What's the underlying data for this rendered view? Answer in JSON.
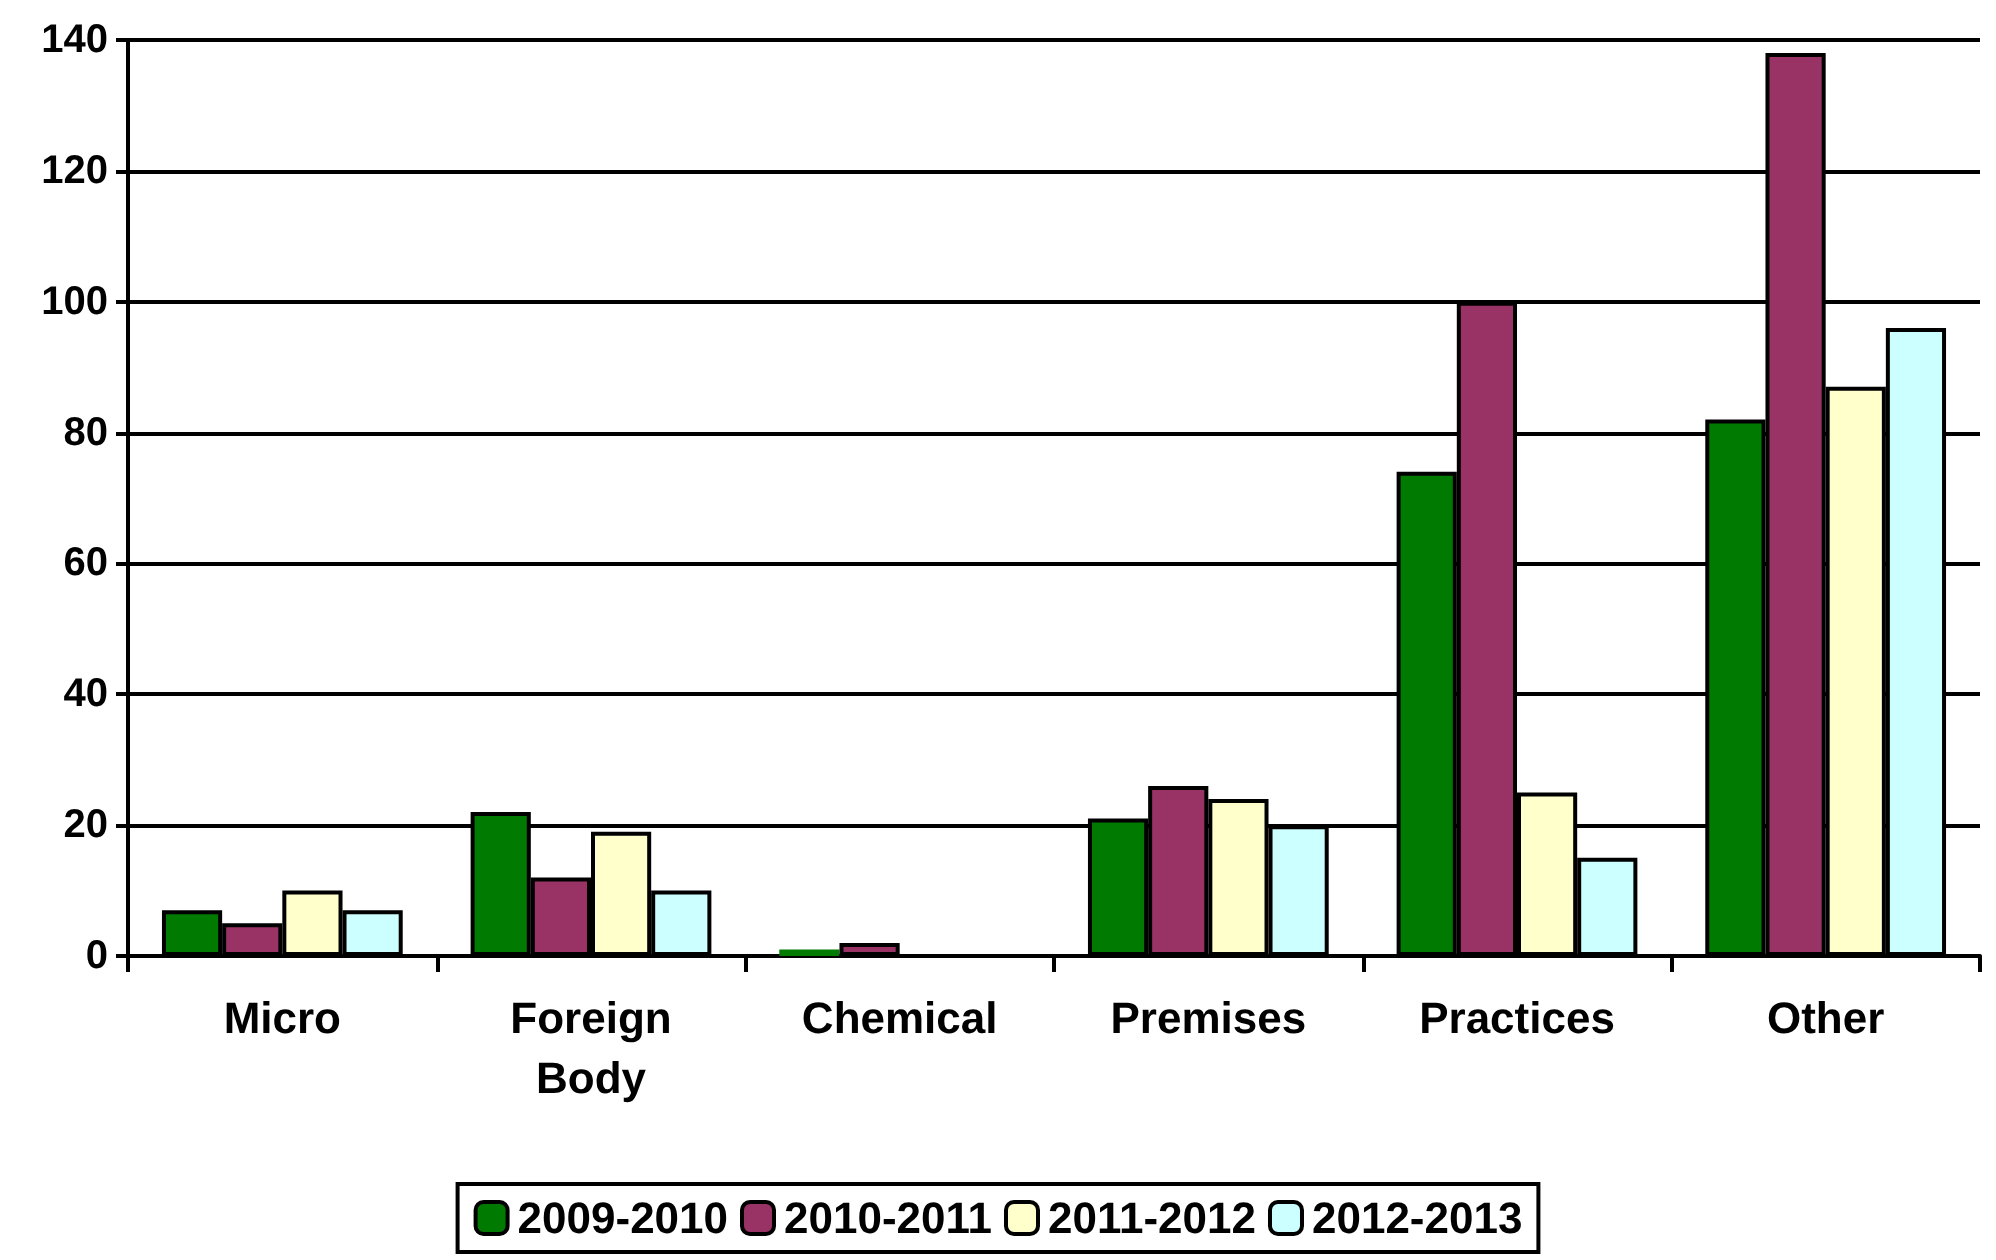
{
  "chart_data": {
    "type": "bar",
    "categories": [
      "Micro",
      "Foreign\nBody",
      "Chemical",
      "Premises",
      "Practices",
      "Other"
    ],
    "series": [
      {
        "name": "2009-2010",
        "color": "#007a00",
        "values": [
          7,
          22,
          1,
          21,
          74,
          82
        ]
      },
      {
        "name": "2010-2011",
        "color": "#993366",
        "values": [
          5,
          12,
          2,
          26,
          100,
          138
        ]
      },
      {
        "name": "2011-2012",
        "color": "#ffffcc",
        "values": [
          10,
          19,
          0,
          24,
          25,
          87
        ]
      },
      {
        "name": "2012-2013",
        "color": "#ccffff",
        "values": [
          7,
          10,
          0,
          20,
          15,
          96
        ]
      }
    ],
    "ylim": [
      0,
      140
    ],
    "yticks": [
      0,
      20,
      40,
      60,
      80,
      100,
      120,
      140
    ],
    "grid": "y",
    "legend": "bottom"
  }
}
